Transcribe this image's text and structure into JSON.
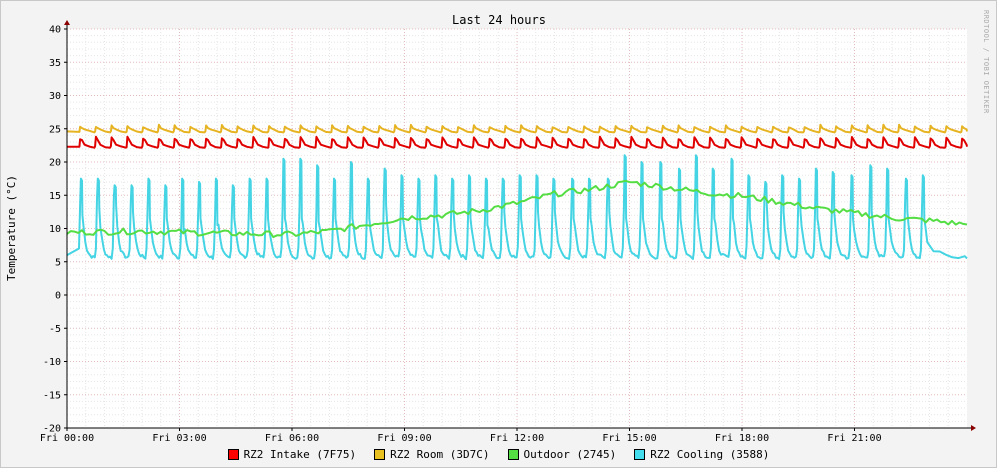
{
  "chart_data": {
    "type": "line",
    "title": "Last 24 hours",
    "ylabel": "Temperature (°C)",
    "ylim": [
      -20,
      40
    ],
    "yticks": [
      -20,
      -15,
      -10,
      -5,
      0,
      5,
      10,
      15,
      20,
      25,
      30,
      35,
      40
    ],
    "x_range_hours": [
      0,
      24
    ],
    "xtick_labels": [
      "Fri 00:00",
      "Fri 03:00",
      "Fri 06:00",
      "Fri 09:00",
      "Fri 12:00",
      "Fri 15:00",
      "Fri 18:00",
      "Fri 21:00"
    ],
    "xtick_hours": [
      0,
      3,
      6,
      9,
      12,
      15,
      18,
      21
    ],
    "grid": true,
    "legend_position": "bottom",
    "watermark": "RRDTOOL / TOBI OETIKER",
    "series": [
      {
        "name": "RZ2 Intake (7F75)",
        "color": "#ff0000",
        "stroke": "#e00000",
        "baseline": 22.3,
        "spike_peak": 23.8,
        "period_hours": 0.42,
        "phase_hours": 0.35
      },
      {
        "name": "RZ2 Room (3D7C)",
        "color": "#e8c020",
        "stroke": "#e6b422",
        "baseline": 24.6,
        "spike_peak": 25.6,
        "period_hours": 0.42,
        "phase_hours": 0.35
      },
      {
        "name": "Outdoor (2745)",
        "color": "#55dd44",
        "stroke": "#55dd44",
        "hours": [
          0,
          2,
          4,
          6,
          7,
          8,
          9,
          10,
          11,
          12,
          13,
          14,
          15,
          16,
          17,
          18,
          19,
          20,
          21,
          22,
          23,
          24
        ],
        "values": [
          9.4,
          9.6,
          9.3,
          9.1,
          9.6,
          10.6,
          11.6,
          12.0,
          12.7,
          13.8,
          15.2,
          15.9,
          17.0,
          16.2,
          15.4,
          14.9,
          14.0,
          13.0,
          12.3,
          11.6,
          11.2,
          10.6
        ]
      },
      {
        "name": "RZ2 Cooling (3588)",
        "color": "#44ddee",
        "stroke": "#44d4e4",
        "baseline": 5.5,
        "hours": [
          0.35,
          0.8,
          1.25,
          1.7,
          2.15,
          2.6,
          3.05,
          3.5,
          3.95,
          4.4,
          4.85,
          5.3,
          5.75,
          6.2,
          6.65,
          7.1,
          7.55,
          8.0,
          8.45,
          8.9,
          9.35,
          9.8,
          10.25,
          10.7,
          11.15,
          11.6,
          12.05,
          12.5,
          12.95,
          13.45,
          13.9,
          14.4,
          14.85,
          15.3,
          15.8,
          16.3,
          16.75,
          17.2,
          17.7,
          18.15,
          18.6,
          19.05,
          19.5,
          19.95,
          20.4,
          20.9,
          21.4,
          21.85,
          22.35,
          22.8
        ],
        "peaks": [
          17.5,
          17.5,
          16.5,
          16.5,
          17.5,
          16.5,
          17.5,
          17,
          17.5,
          16.5,
          17.5,
          17.5,
          20.5,
          20.5,
          19.5,
          17.5,
          20,
          17.5,
          19,
          18,
          17.5,
          18,
          17.5,
          18,
          17.5,
          17.5,
          18,
          18,
          17.5,
          17.5,
          17.5,
          17.5,
          21,
          20,
          20,
          19,
          21,
          19,
          20.5,
          18,
          17,
          18,
          17.5,
          19,
          18.5,
          18,
          19.5,
          19,
          17.5,
          18
        ],
        "shoulders": [
          13.5,
          14.5,
          15,
          14,
          13,
          13,
          11,
          13,
          12,
          13,
          13,
          13,
          13,
          13,
          12.5,
          13,
          13,
          13,
          15,
          13,
          13,
          13,
          14,
          13,
          12,
          14,
          13,
          14,
          14,
          13,
          13,
          14,
          13,
          13,
          13,
          13,
          14,
          13,
          13,
          13,
          15,
          14,
          14,
          13,
          14,
          13,
          14,
          13,
          14,
          13
        ]
      }
    ]
  }
}
